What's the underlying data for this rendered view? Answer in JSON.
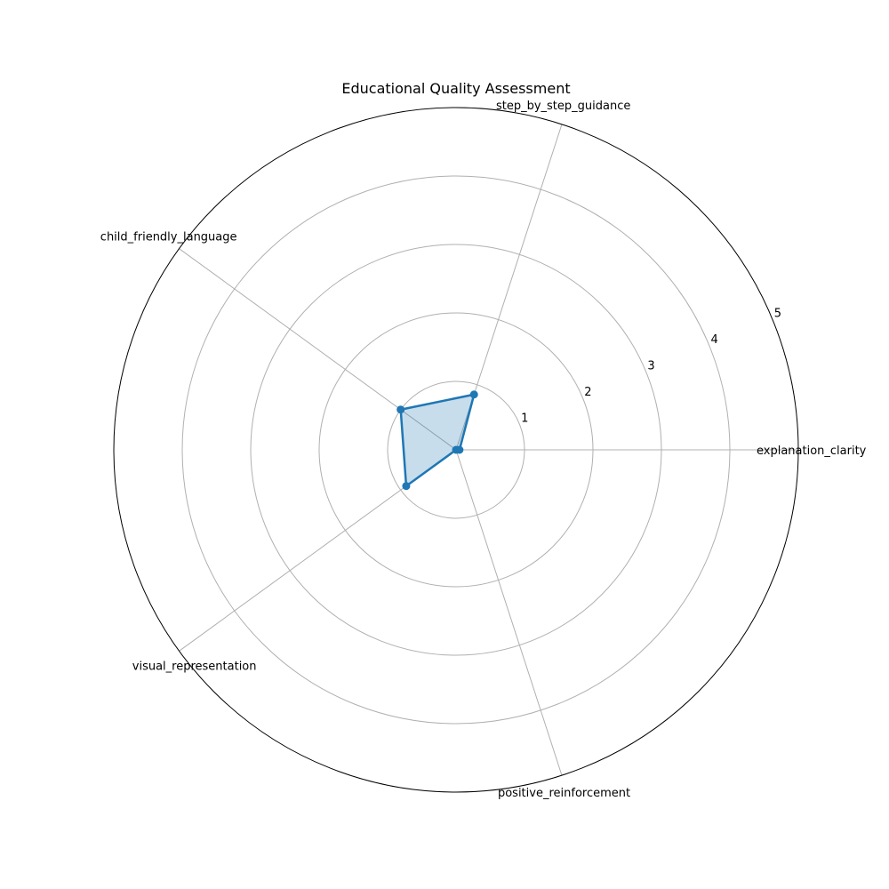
{
  "chart_data": {
    "type": "radar",
    "title": "Educational Quality Assessment",
    "categories": [
      "explanation_clarity",
      "step_by_step_guidance",
      "child_friendly_language",
      "visual_representation",
      "positive_reinforcement"
    ],
    "values": [
      0.05,
      0.85,
      1.0,
      0.9,
      0.0
    ],
    "rlim": [
      0,
      5
    ],
    "rticks": [
      1,
      2,
      3,
      4,
      5
    ],
    "grid": true,
    "colors": {
      "line": "#1f77b4",
      "fill": "#1f77b4",
      "grid": "#b0b0b0",
      "frame": "#000000"
    }
  }
}
